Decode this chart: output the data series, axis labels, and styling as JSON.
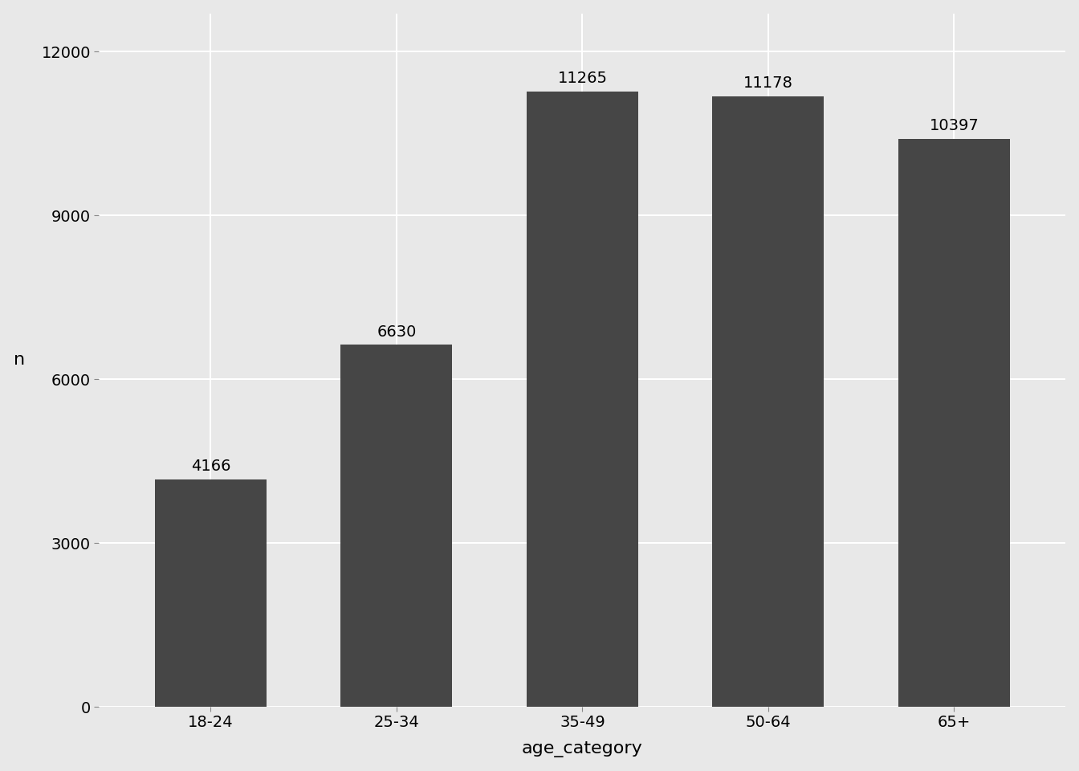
{
  "categories": [
    "18-24",
    "25-34",
    "35-49",
    "50-64",
    "65+"
  ],
  "values": [
    4166,
    6630,
    11265,
    11178,
    10397
  ],
  "bar_color": "#464646",
  "background_color": "#e8e8e8",
  "panel_background": "#e8e8e8",
  "xlabel": "age_category",
  "ylabel": "n",
  "ylim": [
    0,
    12700
  ],
  "yticks": [
    0,
    3000,
    6000,
    9000,
    12000
  ],
  "label_fontsize": 16,
  "tick_fontsize": 14,
  "annotation_fontsize": 14,
  "grid_color": "#ffffff",
  "grid_linewidth": 1.5,
  "bar_width": 0.6
}
